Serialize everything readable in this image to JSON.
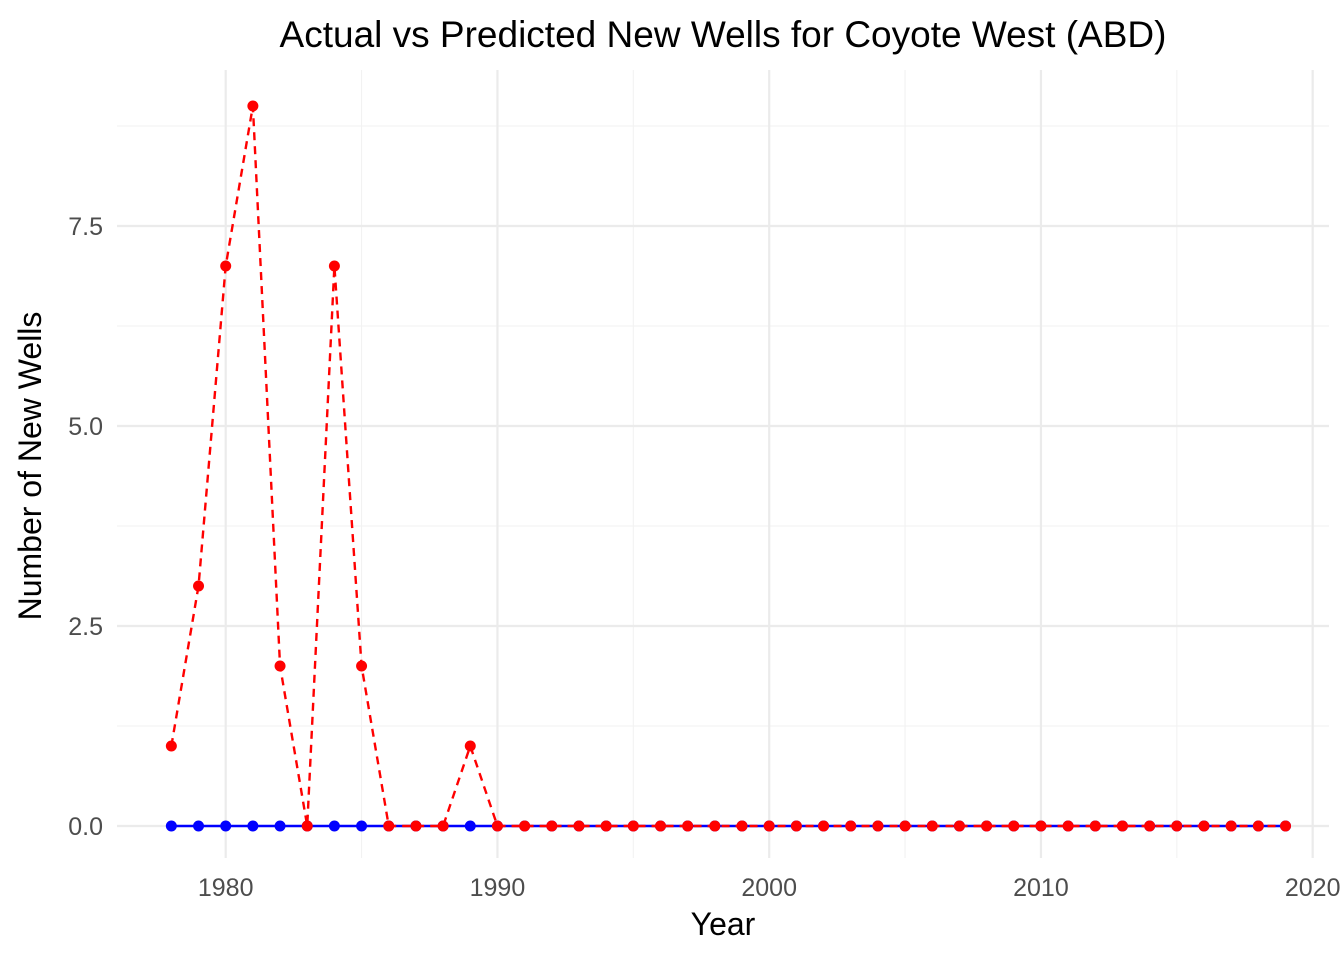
{
  "chart_data": {
    "type": "line",
    "title": "Actual vs Predicted New Wells for Coyote  West (ABD)",
    "xlabel": "Year",
    "ylabel": "Number of New Wells",
    "xlim": [
      1976.0,
      2020.6
    ],
    "ylim": [
      -0.4,
      9.45
    ],
    "x_ticks": [
      1980,
      1990,
      2000,
      2010,
      2020
    ],
    "y_ticks": [
      0.0,
      2.5,
      5.0,
      7.5
    ],
    "y_tick_labels": [
      "0.0",
      "2.5",
      "5.0",
      "7.5"
    ],
    "grid": true,
    "legend": "none",
    "x": [
      1978,
      1979,
      1980,
      1981,
      1982,
      1983,
      1984,
      1985,
      1986,
      1987,
      1988,
      1989,
      1990,
      1991,
      1992,
      1993,
      1994,
      1995,
      1996,
      1997,
      1998,
      1999,
      2000,
      2001,
      2002,
      2003,
      2004,
      2005,
      2006,
      2007,
      2008,
      2009,
      2010,
      2011,
      2012,
      2013,
      2014,
      2015,
      2016,
      2017,
      2018,
      2019
    ],
    "series": [
      {
        "color": "#0000ff",
        "line_style": "solid",
        "values": [
          0,
          0,
          0,
          0,
          0,
          0,
          0,
          0,
          0,
          0,
          0,
          0,
          0,
          0,
          0,
          0,
          0,
          0,
          0,
          0,
          0,
          0,
          0,
          0,
          0,
          0,
          0,
          0,
          0,
          0,
          0,
          0,
          0,
          0,
          0,
          0,
          0,
          0,
          0,
          0,
          0,
          0
        ]
      },
      {
        "color": "#ff0000",
        "line_style": "dashed",
        "values": [
          1,
          3,
          7,
          9,
          2,
          0,
          7,
          2,
          0,
          0,
          0,
          1,
          0,
          0,
          0,
          0,
          0,
          0,
          0,
          0,
          0,
          0,
          0,
          0,
          0,
          0,
          0,
          0,
          0,
          0,
          0,
          0,
          0,
          0,
          0,
          0,
          0,
          0,
          0,
          0,
          0,
          0
        ]
      }
    ]
  }
}
